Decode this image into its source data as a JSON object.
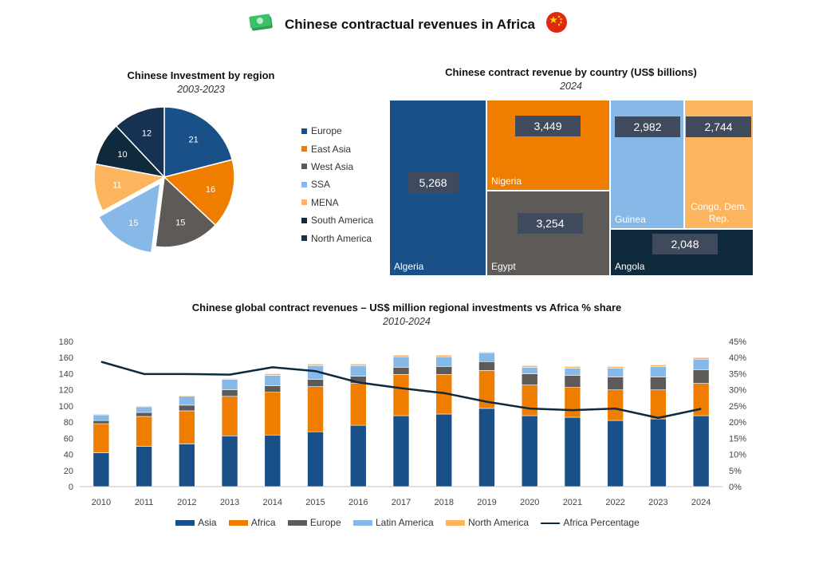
{
  "header": {
    "title": "Chinese contractual revenues in Africa",
    "money_icon": "money-stack-icon",
    "flag_icon": "china-flag-icon"
  },
  "colors": {
    "asia": "#1a5088",
    "europe_pie": "#1a5088",
    "africa": "#ef7d00",
    "east_asia": "#ef7d00",
    "europe": "#5d5a57",
    "west_asia": "#5d5a57",
    "latin_america": "#86b8e8",
    "ssa": "#86b8e8",
    "north_america": "#fdb45e",
    "mena": "#fdb45e",
    "south_america": "#102a3f",
    "north_america_pie": "#173152",
    "line": "#0e2a3c"
  },
  "chart_data": [
    {
      "type": "pie",
      "title": "Chinese Investment by region",
      "subtitle": "2003-2023",
      "slices": [
        {
          "name": "Europe",
          "value": 21,
          "color": "#1a5088"
        },
        {
          "name": "East Asia",
          "value": 16,
          "color": "#ef7d00"
        },
        {
          "name": "West Asia",
          "value": 15,
          "color": "#5d5a57"
        },
        {
          "name": "SSA",
          "value": 15,
          "color": "#86b8e8",
          "exploded": true
        },
        {
          "name": "MENA",
          "value": 11,
          "color": "#fdb45e"
        },
        {
          "name": "South America",
          "value": 10,
          "color": "#0e2a3c"
        },
        {
          "name": "North America",
          "value": 12,
          "color": "#173152"
        }
      ]
    },
    {
      "type": "treemap",
      "title": "Chinese contract revenue by country (US$ billions)",
      "subtitle": "2024",
      "items": [
        {
          "name": "Algeria",
          "value": "5,268",
          "color": "#1a5088"
        },
        {
          "name": "Nigeria",
          "value": "3,449",
          "color": "#ef7d00"
        },
        {
          "name": "Egypt",
          "value": "3,254",
          "color": "#5d5a57"
        },
        {
          "name": "Guinea",
          "value": "2,982",
          "color": "#86b8e8"
        },
        {
          "name": "Congo, Dem. Rep.",
          "value": "2,744",
          "color": "#fdb45e"
        },
        {
          "name": "Angola",
          "value": "2,048",
          "color": "#0e2a3c"
        }
      ]
    },
    {
      "type": "bar",
      "stacked": true,
      "title": "Chinese global contract revenues – US$ million regional investments vs Africa % share",
      "subtitle": "2010-2024",
      "categories": [
        "2010",
        "2011",
        "2012",
        "2013",
        "2014",
        "2015",
        "2016",
        "2017",
        "2018",
        "2019",
        "2020",
        "2021",
        "2022",
        "2023",
        "2024"
      ],
      "ylim": [
        0,
        180
      ],
      "yticks": [
        0,
        20,
        40,
        60,
        80,
        100,
        120,
        140,
        160,
        180
      ],
      "y2lim": [
        0,
        45
      ],
      "y2ticks": [
        "0%",
        "5%",
        "10%",
        "15%",
        "20%",
        "25%",
        "30%",
        "35%",
        "40%",
        "45%"
      ],
      "series": [
        {
          "name": "Asia",
          "color": "#1a5088",
          "values": [
            42,
            50,
            53,
            63,
            64,
            68,
            76,
            88,
            90,
            97,
            88,
            86,
            82,
            84,
            88
          ]
        },
        {
          "name": "Africa",
          "color": "#ef7d00",
          "values": [
            36,
            37,
            41,
            49,
            53,
            56,
            52,
            51,
            49,
            47,
            38,
            37,
            38,
            36,
            40
          ]
        },
        {
          "name": "Europe",
          "color": "#5d5a57",
          "values": [
            4,
            5,
            7,
            8,
            8,
            9,
            9,
            9,
            10,
            11,
            14,
            15,
            16,
            16,
            17
          ]
        },
        {
          "name": "Latin America",
          "color": "#86b8e8",
          "values": [
            7,
            7,
            11,
            13,
            13,
            17,
            13,
            13,
            12,
            11,
            8,
            9,
            11,
            13,
            13
          ]
        },
        {
          "name": "North America",
          "color": "#fdb45e",
          "values": [
            1,
            1,
            1,
            1,
            2,
            2,
            2,
            2,
            2,
            1,
            2,
            2,
            2,
            2,
            2
          ]
        }
      ],
      "line": {
        "name": "Africa Percentage",
        "color": "#0e2a3c",
        "values": [
          38.7,
          34.9,
          34.9,
          34.7,
          37.0,
          35.8,
          32.3,
          30.5,
          29.0,
          26.3,
          24.2,
          23.7,
          24.2,
          21.3,
          24.1
        ]
      }
    }
  ]
}
